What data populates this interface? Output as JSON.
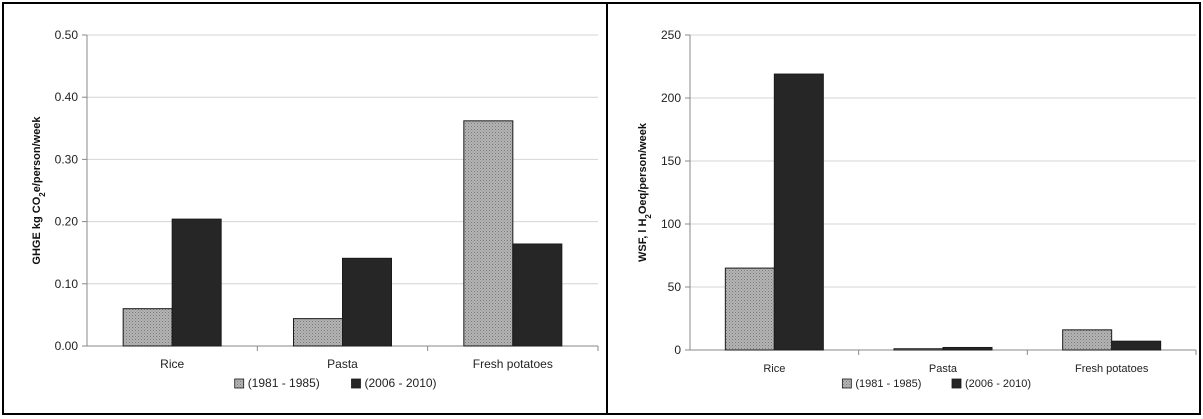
{
  "chart_data": [
    {
      "type": "bar",
      "title": "",
      "categories": [
        "Rice",
        "Pasta",
        "Fresh potatoes"
      ],
      "series": [
        {
          "name": "(1981 - 1985)",
          "values": [
            0.06,
            0.044,
            0.362
          ],
          "color": "#a9a9a9",
          "pattern": "dotted-gray"
        },
        {
          "name": "(2006 - 2010)",
          "values": [
            0.204,
            0.141,
            0.164
          ],
          "color": "#262626",
          "pattern": "solid"
        }
      ],
      "ylabel_parts": {
        "pre": "GHGE kg CO",
        "sub": "2",
        "post": "e/person/week"
      },
      "xlabel": "",
      "ylim": [
        0,
        0.5
      ],
      "yticks": [
        "0.00",
        "0.10",
        "0.20",
        "0.30",
        "0.40",
        "0.50"
      ],
      "grid": true,
      "legend": "bottom"
    },
    {
      "type": "bar",
      "title": "",
      "categories": [
        "Rice",
        "Pasta",
        "Fresh potatoes"
      ],
      "series": [
        {
          "name": "(1981 - 1985)",
          "values": [
            65,
            1,
            16
          ],
          "color": "#a9a9a9",
          "pattern": "dotted-gray"
        },
        {
          "name": "(2006 - 2010)",
          "values": [
            219,
            2,
            7
          ],
          "color": "#262626",
          "pattern": "solid"
        }
      ],
      "ylabel_parts": {
        "pre": "WSF, l H",
        "sub": "2",
        "post": "Oeq/person/week"
      },
      "xlabel": "",
      "ylim": [
        0,
        250
      ],
      "yticks": [
        "0",
        "50",
        "100",
        "150",
        "200",
        "250"
      ],
      "grid": true,
      "legend": "bottom"
    }
  ]
}
